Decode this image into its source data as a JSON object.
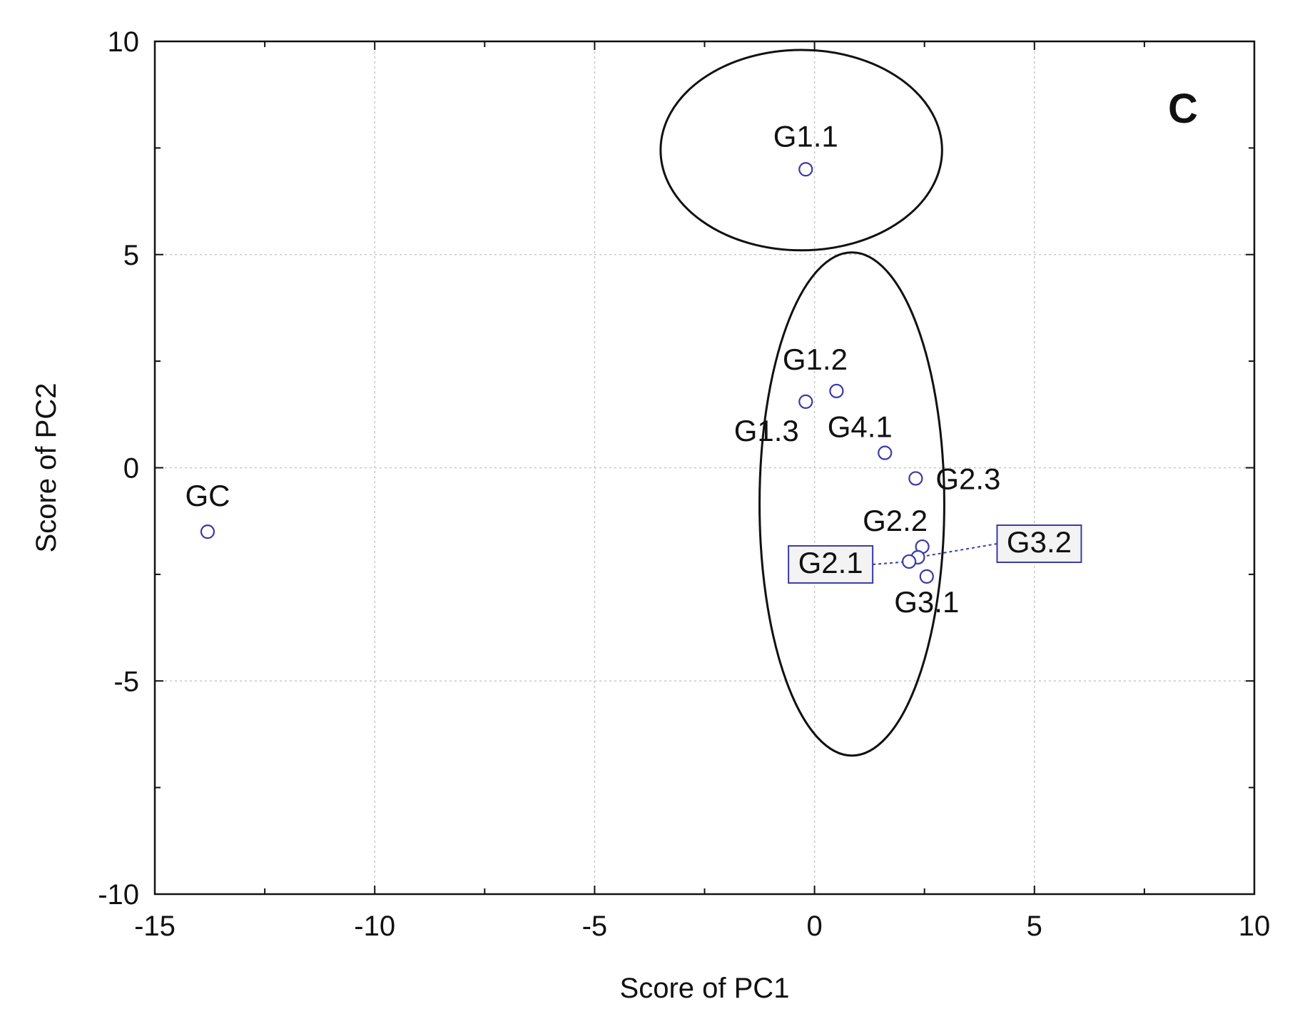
{
  "chart_data": {
    "type": "scatter",
    "panel_label": "C",
    "xlabel": "Score of PC1",
    "ylabel": "Score of PC2",
    "xlim": [
      -15,
      10
    ],
    "ylim": [
      -10,
      10
    ],
    "xticks": [
      -15,
      -10,
      -5,
      0,
      5,
      10
    ],
    "yticks": [
      -10,
      -5,
      0,
      5,
      10
    ],
    "grid": true,
    "marker": "open-circle",
    "marker_color": "#3a3aa8",
    "points": [
      {
        "label": "GC",
        "x": -13.8,
        "y": -1.5
      },
      {
        "label": "G1.1",
        "x": -0.2,
        "y": 7.0
      },
      {
        "label": "G1.2",
        "x": 0.5,
        "y": 1.8
      },
      {
        "label": "G1.3",
        "x": -0.2,
        "y": 1.55
      },
      {
        "label": "G4.1",
        "x": 1.6,
        "y": 0.35
      },
      {
        "label": "G2.3",
        "x": 2.3,
        "y": -0.25
      },
      {
        "label": "G2.2",
        "x": 2.45,
        "y": -1.85
      },
      {
        "label": "G3.2",
        "x": 2.35,
        "y": -2.1
      },
      {
        "label": "G2.1",
        "x": 2.15,
        "y": -2.2
      },
      {
        "label": "G3.1",
        "x": 2.55,
        "y": -2.55
      }
    ],
    "boxed_labels": [
      "G2.1",
      "G3.2"
    ],
    "groups": [
      {
        "members": [
          "G1.1"
        ],
        "center": [
          -0.3,
          7.45
        ],
        "radii": [
          3.2,
          2.35
        ]
      },
      {
        "members": [
          "G1.2",
          "G1.3",
          "G4.1",
          "G2.3",
          "G2.2",
          "G3.2",
          "G2.1",
          "G3.1"
        ],
        "center": [
          0.85,
          -0.85
        ],
        "radii": [
          2.1,
          5.9
        ]
      }
    ]
  }
}
